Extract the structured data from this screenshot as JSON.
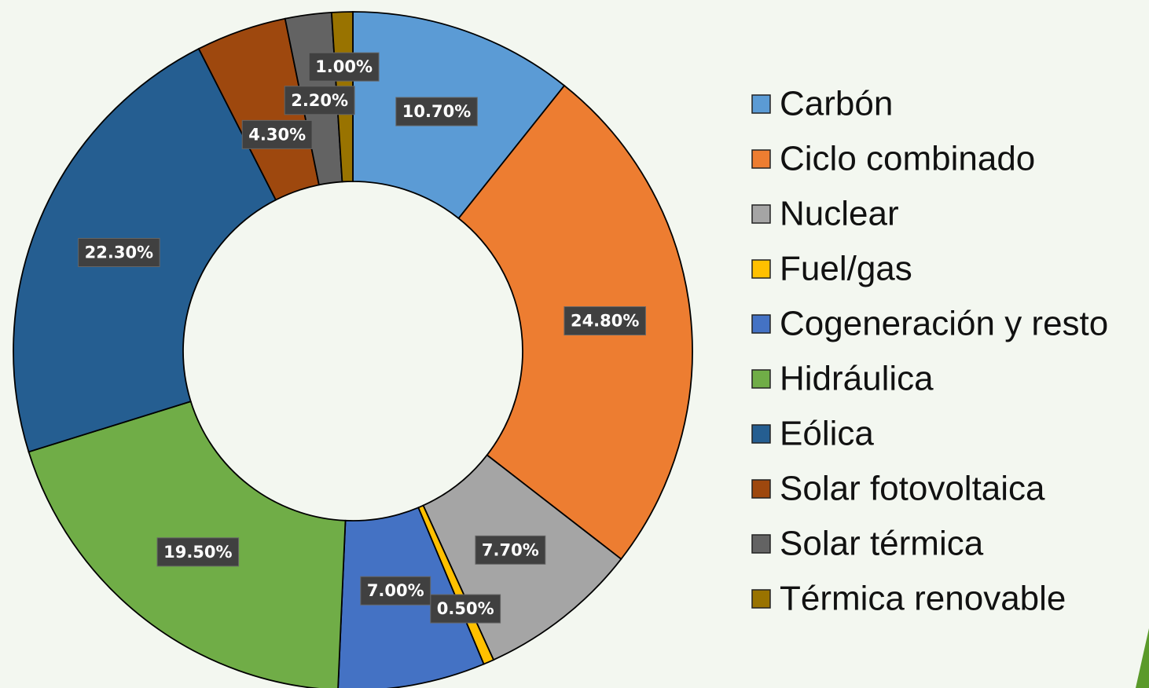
{
  "chart_data": {
    "type": "donut",
    "categories": [
      "Carbón",
      "Ciclo combinado",
      "Nuclear",
      "Fuel/gas",
      "Cogeneración y resto",
      "Hidráulica",
      "Eólica",
      "Solar fotovoltaica",
      "Solar térmica",
      "Térmica renovable"
    ],
    "values": [
      10.7,
      24.8,
      7.7,
      0.5,
      7.0,
      19.5,
      22.3,
      4.3,
      2.2,
      1.0
    ],
    "value_labels": [
      "10.70%",
      "24.80%",
      "7.70%",
      "0.50%",
      "7.00%",
      "19.50%",
      "22.30%",
      "4.30%",
      "2.20%",
      "1.00%"
    ],
    "colors": [
      "#5b9bd5",
      "#ed7d31",
      "#a5a5a5",
      "#ffc000",
      "#4472c4",
      "#70ad47",
      "#255e91",
      "#9e480e",
      "#636363",
      "#997300"
    ],
    "legend": "right"
  }
}
